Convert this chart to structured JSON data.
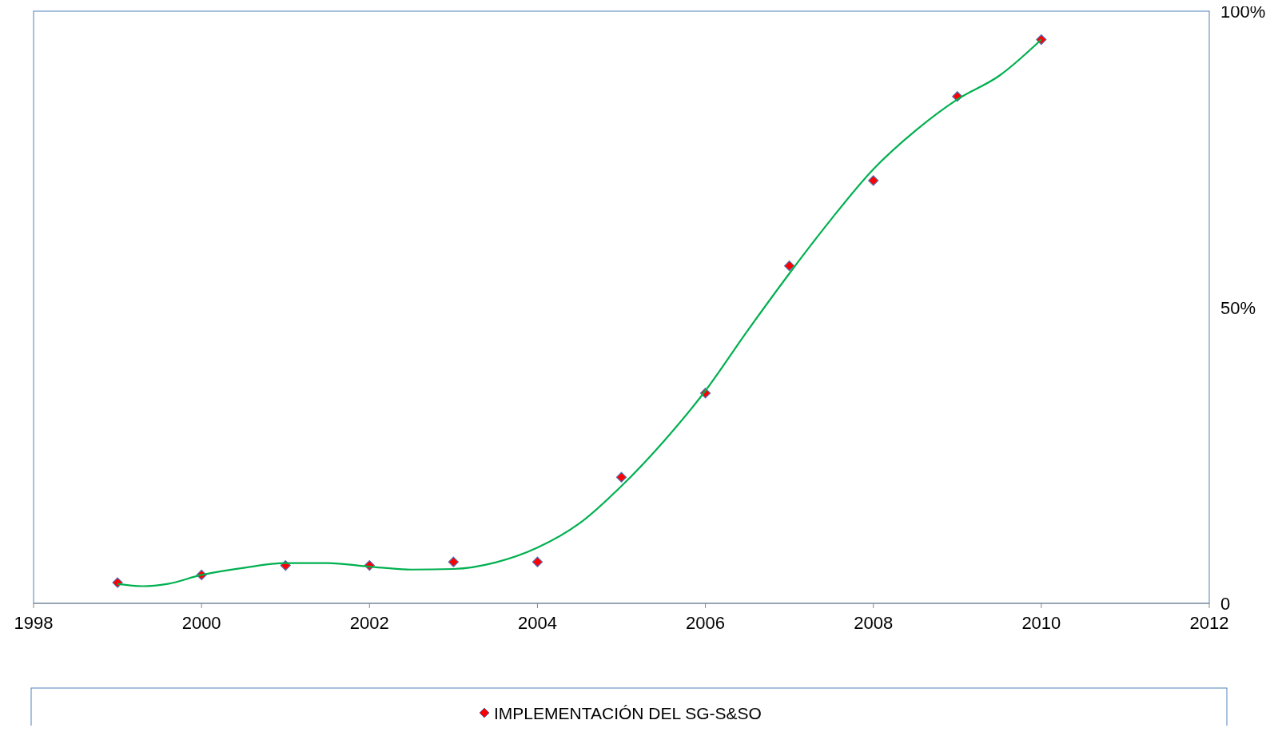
{
  "chart_data": {
    "type": "scatter",
    "x": [
      1999,
      2000,
      2001,
      2002,
      2003,
      2004,
      2005,
      2006,
      2007,
      2008,
      2009,
      2010
    ],
    "series": [
      {
        "name": "IMPLEMENTACIÓN DEL SG-S&SO",
        "color": "#ff0000",
        "marker": "diamond",
        "values": [
          3.5,
          4.8,
          6.4,
          6.4,
          7.0,
          7.0,
          21.3,
          35.5,
          57.0,
          71.4,
          85.6,
          95.2
        ]
      },
      {
        "type": "line",
        "color": "#00b050",
        "marker": "none",
        "x": [
          1999,
          1999.3,
          1999.6,
          2000,
          2000.5,
          2001,
          2001.5,
          2002,
          2002.5,
          2003,
          2003.5,
          2004,
          2004.5,
          2005,
          2005.5,
          2006,
          2006.5,
          2007,
          2007.5,
          2008,
          2008.5,
          2009,
          2009.5,
          2010
        ],
        "values": [
          3.3,
          2.9,
          3.3,
          4.8,
          6.0,
          6.8,
          6.8,
          6.2,
          5.7,
          5.8,
          6.9,
          9.4,
          13.5,
          19.8,
          27.3,
          35.9,
          46.0,
          55.7,
          64.9,
          73.3,
          79.8,
          85.1,
          89.1,
          95.2
        ]
      }
    ],
    "xlim": [
      1998,
      2012
    ],
    "xticks": [
      1998,
      2000,
      2002,
      2004,
      2006,
      2008,
      2010,
      2012
    ],
    "ylim": [
      0,
      100
    ],
    "yticks": [
      {
        "value": 0,
        "label": "0"
      },
      {
        "value": 50,
        "label": "50%"
      },
      {
        "value": 100,
        "label": "100%"
      }
    ],
    "grid": false,
    "legend": "bottom"
  }
}
